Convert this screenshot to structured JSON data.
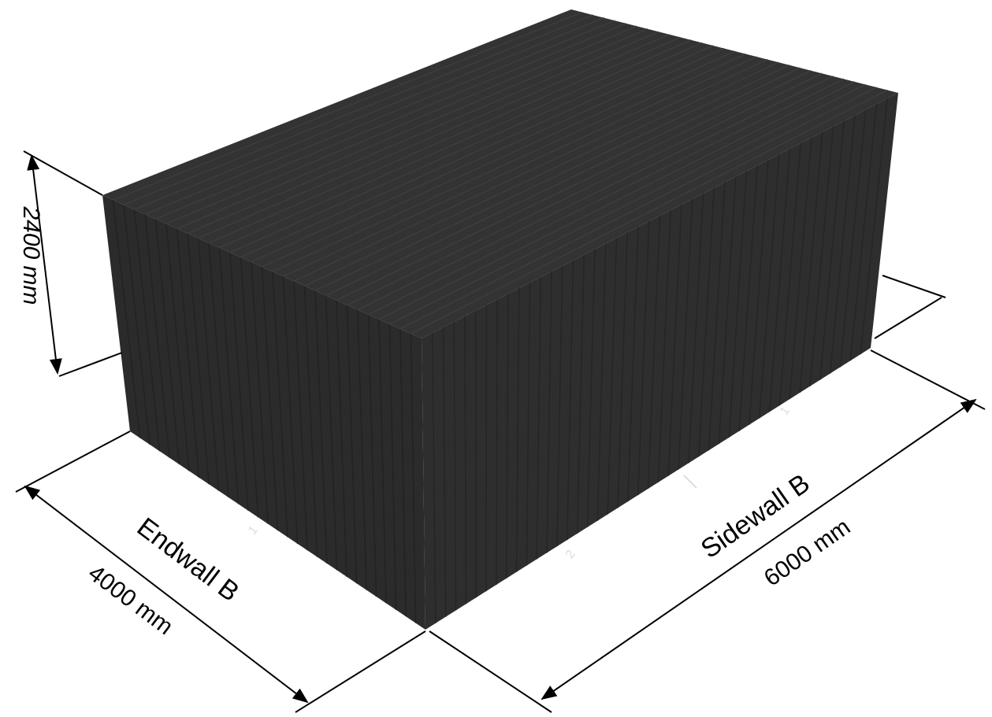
{
  "dimensions": {
    "height": "2400 mm",
    "endwall_name": "Endwall B",
    "endwall_length": "4000 mm",
    "sidewall_name": "Sidewall B",
    "sidewall_length": "6000 mm"
  },
  "markers": {
    "endwall_1": "1",
    "sidewall_2": "2",
    "sidewall_1": "1"
  }
}
